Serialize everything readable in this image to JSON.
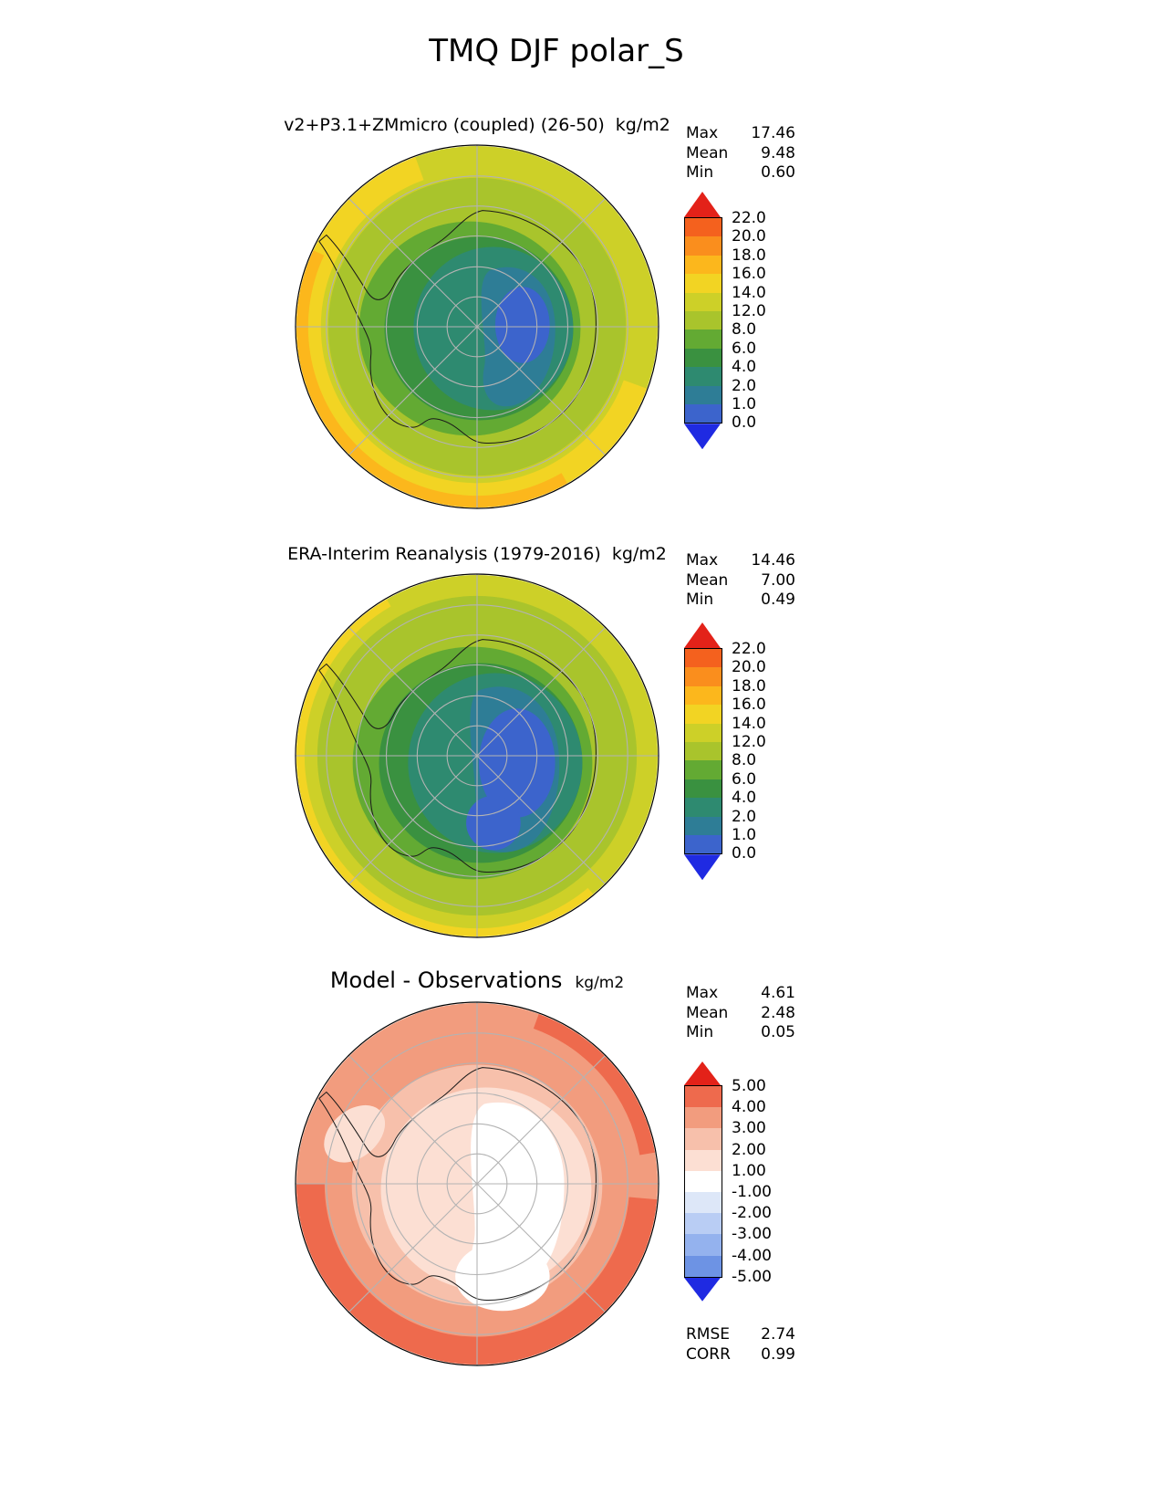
{
  "title": "TMQ DJF polar_S",
  "chart_data": [
    {
      "type": "heatmap",
      "variable": "TMQ",
      "season": "DJF",
      "region": "polar_S",
      "projection": "south polar stereographic",
      "title": "v2+P3.1+ZMmicro (coupled) (26-50)",
      "units": "kg/m2",
      "stats": {
        "max": 17.46,
        "mean": 9.48,
        "min": 0.6
      },
      "stats_rows": [
        {
          "label": "Max",
          "value": "17.46"
        },
        {
          "label": "Mean",
          "value": "9.48"
        },
        {
          "label": "Min",
          "value": "0.60"
        }
      ],
      "contour_levels": [
        0.0,
        1.0,
        2.0,
        4.0,
        6.0,
        8.0,
        12.0,
        14.0,
        16.0,
        18.0,
        20.0,
        22.0
      ],
      "colorbar": {
        "labels": [
          "22.0",
          "20.0",
          "18.0",
          "16.0",
          "14.0",
          "12.0",
          "8.0",
          "6.0",
          "4.0",
          "2.0",
          "1.0",
          "0.0"
        ],
        "colors": [
          "#e32219",
          "#f4611e",
          "#fa8e1d",
          "#fcb71c",
          "#f2d423",
          "#cdd028",
          "#a9c42c",
          "#63aa33",
          "#3a9140",
          "#2e8a70",
          "#2e7d96",
          "#3c64cc",
          "#1f2ae2"
        ]
      },
      "pattern": "Lowest values (0-2 kg/m2, blue) over the East Antarctic interior, increasing outward through 2-8 kg/m2 (teal/green) near the coast to 8-16 kg/m2 (yellow-green/yellow) over the Southern Ocean, with 16-18 kg/m2 (orange) near the map edge at lower left."
    },
    {
      "type": "heatmap",
      "variable": "TMQ",
      "season": "DJF",
      "region": "polar_S",
      "projection": "south polar stereographic",
      "title": "ERA-Interim Reanalysis (1979-2016)",
      "units": "kg/m2",
      "stats": {
        "max": 14.46,
        "mean": 7.0,
        "min": 0.49
      },
      "stats_rows": [
        {
          "label": "Max",
          "value": "14.46"
        },
        {
          "label": "Mean",
          "value": "7.00"
        },
        {
          "label": "Min",
          "value": "0.49"
        }
      ],
      "contour_levels": [
        0.0,
        1.0,
        2.0,
        4.0,
        6.0,
        8.0,
        12.0,
        14.0,
        16.0,
        18.0,
        20.0,
        22.0
      ],
      "colorbar": {
        "labels": [
          "22.0",
          "20.0",
          "18.0",
          "16.0",
          "14.0",
          "12.0",
          "8.0",
          "6.0",
          "4.0",
          "2.0",
          "1.0",
          "0.0"
        ],
        "colors": [
          "#e32219",
          "#f4611e",
          "#fa8e1d",
          "#fcb71c",
          "#f2d423",
          "#cdd028",
          "#a9c42c",
          "#63aa33",
          "#3a9140",
          "#2e8a70",
          "#2e7d96",
          "#3c64cc",
          "#1f2ae2"
        ]
      },
      "pattern": "Same spatial pattern but drier than the model: large 1-4 kg/m2 (blue/teal) region over the Antarctic interior, 4-8 kg/m2 (green) ring near the coast, 8-14 kg/m2 (yellow-green) over the surrounding ocean, peaking at 14.46 near the edge."
    },
    {
      "type": "heatmap",
      "variable": "TMQ bias",
      "season": "DJF",
      "region": "polar_S",
      "projection": "south polar stereographic",
      "title": "Model - Observations",
      "units": "kg/m2",
      "stats": {
        "max": 4.61,
        "mean": 2.48,
        "min": 0.05
      },
      "rmse": 2.74,
      "corr": 0.99,
      "stats_rows": [
        {
          "label": "Max",
          "value": "4.61"
        },
        {
          "label": "Mean",
          "value": "2.48"
        },
        {
          "label": "Min",
          "value": "0.05"
        }
      ],
      "extra_stats_rows": [
        {
          "label": "RMSE",
          "value": "2.74"
        },
        {
          "label": "CORR",
          "value": "0.99"
        }
      ],
      "contour_levels": [
        -5.0,
        -4.0,
        -3.0,
        -2.0,
        -1.0,
        1.0,
        2.0,
        3.0,
        4.0,
        5.0
      ],
      "colorbar": {
        "labels": [
          "5.00",
          "4.00",
          "3.00",
          "2.00",
          "1.00",
          "-1.00",
          "-2.00",
          "-3.00",
          "-4.00",
          "-5.00"
        ],
        "colors": [
          "#e32219",
          "#ee6a4d",
          "#f29c7e",
          "#f7c0ab",
          "#fcdfd3",
          "#ffffff",
          "#dde7f8",
          "#b9cdf4",
          "#94b2ee",
          "#6d93e4",
          "#1f2ae2"
        ]
      },
      "pattern": "Model moister than observations almost everywhere: near-zero bias (white, -1 to +1) over the East Antarctic plateau, +1 to +3 kg/m2 (pale to mid salmon) over coastal Antarctica, and +3 to +5 kg/m2 (red) over the Southern Ocean, strongest near the map edges."
    }
  ]
}
